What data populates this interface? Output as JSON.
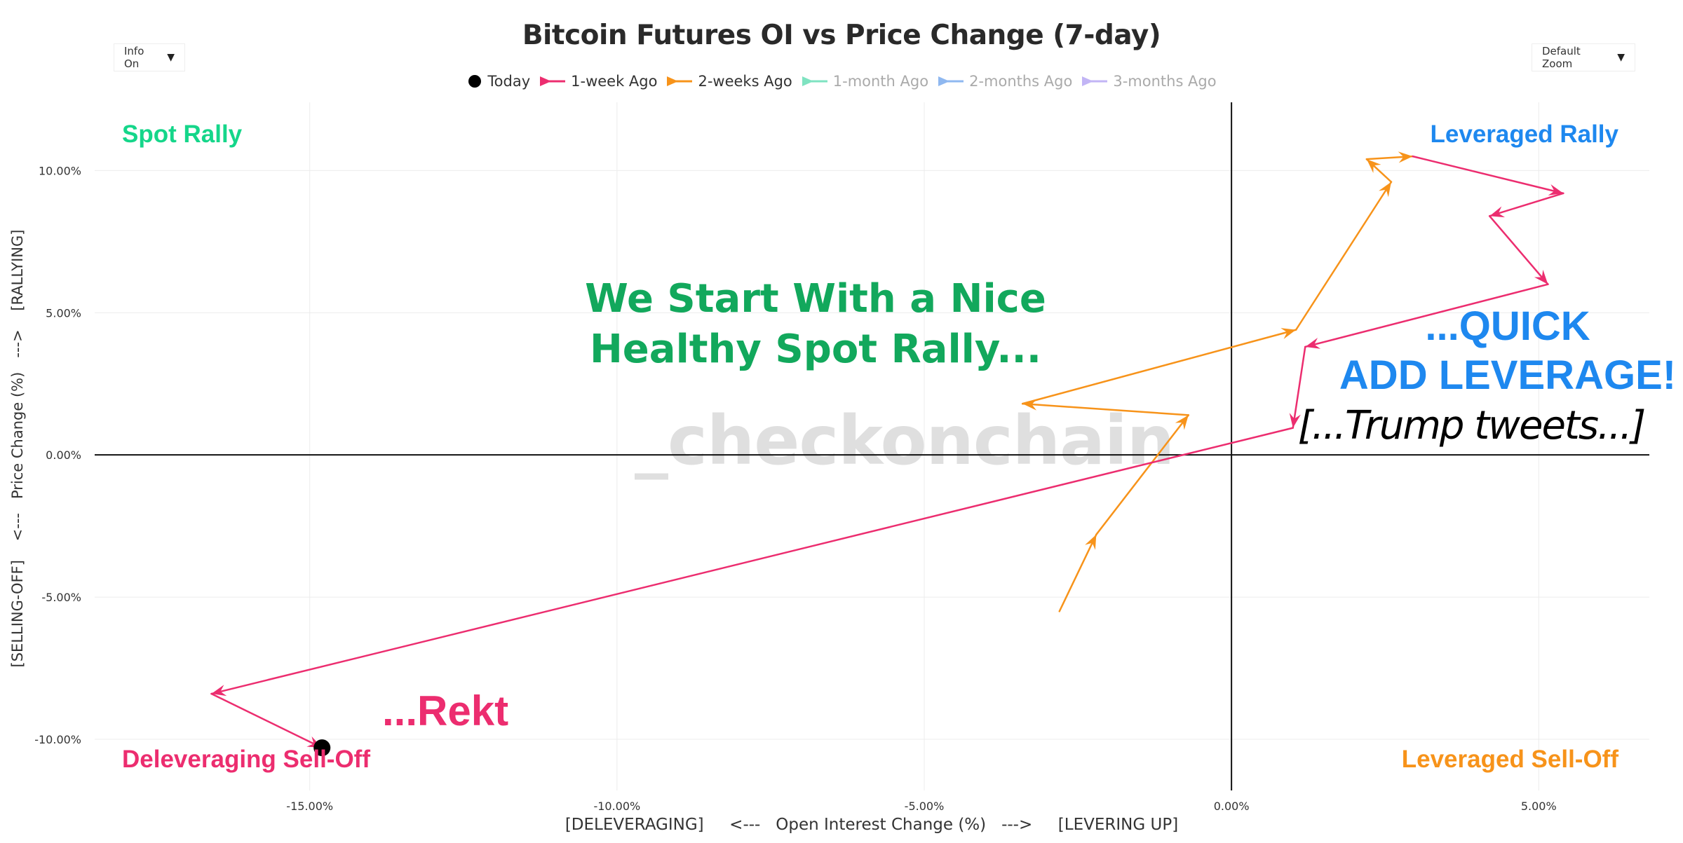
{
  "title": "Bitcoin Futures OI vs Price Change (7-day)",
  "controls": {
    "info_label": "Info On",
    "zoom_label": "Default Zoom",
    "caret": "▼"
  },
  "watermark": "_checkonchain",
  "colors": {
    "today": "#000000",
    "week1": "#ec2d6f",
    "week2": "#f7931a",
    "month1": "#7fe3c1",
    "month2": "#8fb8f0",
    "month3": "#c2b5f5",
    "spot_rally": "#15d68a",
    "leveraged_rally": "#1e88ef",
    "deleveraging": "#ec2d6f",
    "leveraged_selloff": "#f7931a",
    "annotation_green": "#12a85c",
    "annotation_blue": "#1e88ef",
    "annotation_pink": "#ec2d6f"
  },
  "chart_data": {
    "type": "line",
    "title": "Bitcoin Futures OI vs Price Change (7-day)",
    "xlabel": "[DELEVERAGING]     <---   Open Interest Change (%)   --->     [LEVERING UP]",
    "ylabel": "[SELLING-OFF]    <---   Price Change (%)   --->    [RALLYING]",
    "xlim": [
      -18.5,
      6.8
    ],
    "ylim": [
      -11.8,
      12.4
    ],
    "x_ticks": [
      -15,
      -10,
      -5,
      0,
      5
    ],
    "x_tick_labels": [
      "-15.00%",
      "-10.00%",
      "-5.00%",
      "0.00%",
      "5.00%"
    ],
    "y_ticks": [
      -10,
      -5,
      0,
      5,
      10
    ],
    "y_tick_labels": [
      "-10.00%",
      "-5.00%",
      "0.00%",
      "5.00%",
      "10.00%"
    ],
    "grid": true,
    "legend_position": "top-center",
    "legend": [
      {
        "name": "Today",
        "symbol": "dot",
        "color_key": "today",
        "active": true
      },
      {
        "name": "1-week Ago",
        "symbol": "arrow",
        "color_key": "week1",
        "active": true
      },
      {
        "name": "2-weeks Ago",
        "symbol": "arrow",
        "color_key": "week2",
        "active": true
      },
      {
        "name": "1-month Ago",
        "symbol": "arrow",
        "color_key": "month1",
        "active": false
      },
      {
        "name": "2-months Ago",
        "symbol": "arrow",
        "color_key": "month2",
        "active": false
      },
      {
        "name": "3-months Ago",
        "symbol": "arrow",
        "color_key": "month3",
        "active": false
      }
    ],
    "series": [
      {
        "name": "2-weeks Ago",
        "color_key": "week2",
        "points": [
          {
            "x": -2.8,
            "y": -5.5
          },
          {
            "x": -2.2,
            "y": -2.8
          },
          {
            "x": -0.7,
            "y": 1.4
          },
          {
            "x": -3.4,
            "y": 1.8
          },
          {
            "x": 1.05,
            "y": 4.4
          },
          {
            "x": 2.6,
            "y": 9.6
          },
          {
            "x": 2.2,
            "y": 10.4
          },
          {
            "x": 2.95,
            "y": 10.5
          }
        ]
      },
      {
        "name": "1-week Ago",
        "color_key": "week1",
        "points": [
          {
            "x": 2.95,
            "y": 10.5
          },
          {
            "x": 5.4,
            "y": 9.2
          },
          {
            "x": 4.2,
            "y": 8.4
          },
          {
            "x": 5.15,
            "y": 6.0
          },
          {
            "x": 1.2,
            "y": 3.8
          },
          {
            "x": 1.0,
            "y": 0.95
          },
          {
            "x": -16.6,
            "y": -8.4
          },
          {
            "x": -14.8,
            "y": -10.3
          }
        ]
      }
    ],
    "today": {
      "x": -14.8,
      "y": -10.3
    },
    "quadrant_labels": [
      {
        "text": "Spot Rally",
        "color_key": "spot_rally",
        "position": "top-left"
      },
      {
        "text": "Leveraged Rally",
        "color_key": "leveraged_rally",
        "position": "top-right"
      },
      {
        "text": "Deleveraging Sell-Off",
        "color_key": "deleveraging",
        "position": "bottom-left"
      },
      {
        "text": "Leveraged Sell-Off",
        "color_key": "leveraged_selloff",
        "position": "bottom-right"
      }
    ],
    "annotations": [
      {
        "id": "spot",
        "lines": [
          "We Start With a Nice",
          "Healthy Spot Rally..."
        ],
        "color_key": "annotation_green"
      },
      {
        "id": "leverage",
        "lines": [
          "...QUICK",
          "ADD LEVERAGE!"
        ],
        "color_key": "annotation_blue"
      },
      {
        "id": "trump",
        "lines": [
          "[...Trump tweets...]"
        ],
        "color_key": "today"
      },
      {
        "id": "rekt",
        "lines": [
          "...Rekt"
        ],
        "color_key": "annotation_pink"
      }
    ]
  }
}
